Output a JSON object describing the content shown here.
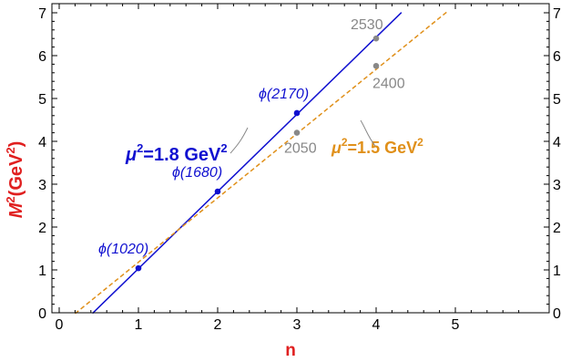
{
  "chart_data": {
    "type": "scatter",
    "xlabel": "n",
    "ylabel_base": "M",
    "ylabel_sup": "2",
    "ylabel_rest": "(GeV",
    "ylabel_sup2": "2",
    "ylabel_close": ")",
    "xlim": [
      -0.2,
      6.3
    ],
    "ylim": [
      0,
      7.2
    ],
    "xticks": [
      0,
      1,
      2,
      3,
      4,
      5
    ],
    "yticks": [
      0,
      1,
      2,
      3,
      4,
      5,
      6,
      7
    ],
    "grid": false,
    "colors": {
      "blue": "#1010d0",
      "orange": "#e0901a",
      "gray": "#888888",
      "red": "#e02020",
      "axis": "#000000"
    },
    "series": [
      {
        "name_base": "μ",
        "name_sup": "2",
        "name_rest": "=1.8 GeV",
        "name_sup2": "2",
        "color": "blue",
        "style": "solid",
        "line": {
          "x_start": 0.42,
          "x_end": 4.32,
          "slope": 1.8,
          "intercept": -0.77
        },
        "points": [
          {
            "x": 1,
            "y": 1.04,
            "label": "ϕ(1020)"
          },
          {
            "x": 2,
            "y": 2.83,
            "label": "ϕ(1680)"
          },
          {
            "x": 3,
            "y": 4.66,
            "label": "ϕ(2170)"
          }
        ]
      },
      {
        "name_base": "μ",
        "name_sup": "2",
        "name_rest": "=1.5 GeV",
        "name_sup2": "2",
        "color": "orange",
        "style": "dashed",
        "line": {
          "x_start": 0.2,
          "x_end": 4.9,
          "slope": 1.5,
          "intercept": -0.32
        },
        "points": [
          {
            "x": 3,
            "y": 4.2,
            "label": "2050"
          },
          {
            "x": 4,
            "y": 5.76,
            "label": "2400"
          },
          {
            "x": 4,
            "y": 6.4,
            "label": "2530"
          }
        ]
      }
    ]
  }
}
